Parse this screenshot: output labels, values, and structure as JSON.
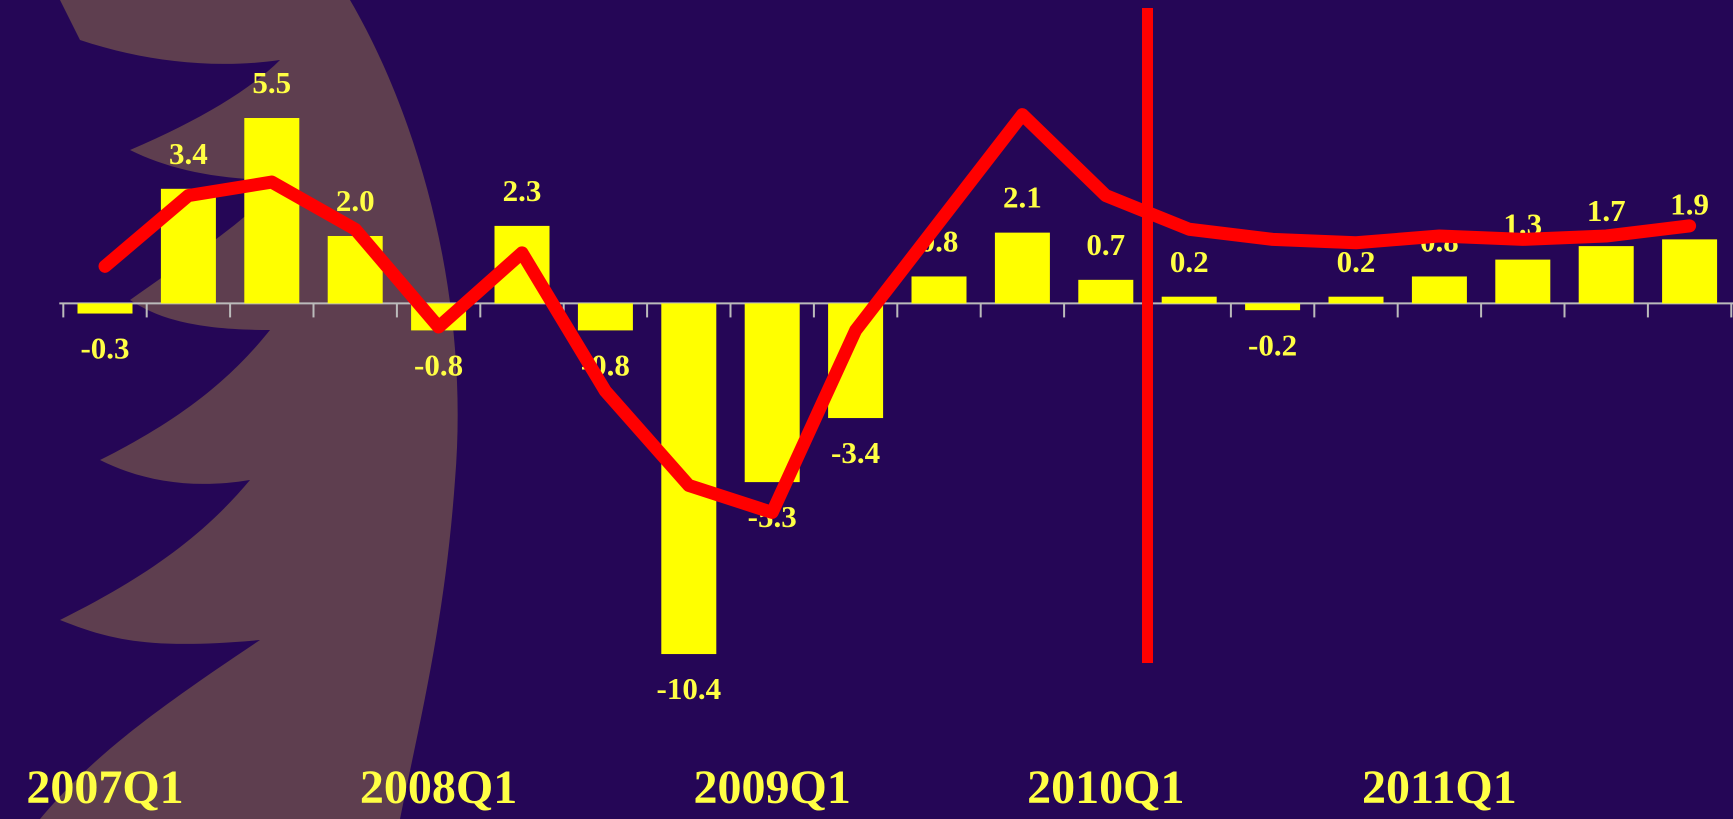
{
  "chart_data": {
    "type": "bar",
    "categories": [
      "2007Q1",
      null,
      null,
      null,
      "2008Q1",
      null,
      null,
      null,
      "2009Q1",
      null,
      null,
      null,
      "2010Q1",
      null,
      null,
      null,
      "2011Q1",
      null,
      null,
      null
    ],
    "series": [
      {
        "type": "bar",
        "color": "#ffff00",
        "values": [
          -0.3,
          3.4,
          5.5,
          2.0,
          -0.8,
          2.3,
          -0.8,
          -10.4,
          -5.3,
          -3.4,
          0.8,
          2.1,
          0.7,
          0.2,
          -0.2,
          0.2,
          0.8,
          1.3,
          1.7,
          1.9
        ],
        "value_labels": [
          "-0.3",
          "3.4",
          "5.5",
          "2.0",
          "-0.8",
          "2.3",
          "-0.8",
          "-10.4",
          "-5.3",
          "-3.4",
          "0.8",
          "2.1",
          "0.7",
          "0.2",
          "-0.2",
          "0.2",
          "0.8",
          "1.3",
          "1.7",
          "1.9"
        ]
      },
      {
        "type": "line",
        "color": "#ff0000",
        "values": [
          1.1,
          3.2,
          3.6,
          2.2,
          -0.7,
          1.5,
          -2.6,
          -5.4,
          -6.2,
          -0.8,
          2.4,
          5.6,
          3.2,
          2.2,
          1.9,
          1.8,
          2.0,
          1.9,
          2.0,
          2.3
        ]
      }
    ],
    "ylim": [
      -12,
      9
    ]
  }
}
